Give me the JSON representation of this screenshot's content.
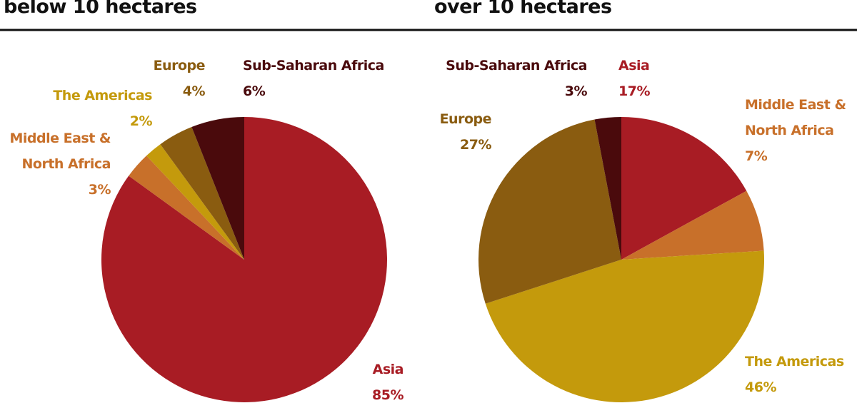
{
  "chart_data": [
    {
      "type": "pie",
      "title": "below 10 hectares",
      "categories": [
        "Asia",
        "Middle East & North Africa",
        "The Americas",
        "Europe",
        "Sub-Saharan Africa"
      ],
      "values": [
        85,
        3,
        2,
        4,
        6
      ],
      "value_labels": [
        "85%",
        "3%",
        "2%",
        "4%",
        "6%"
      ],
      "colors": [
        "#a81c24",
        "#c8702a",
        "#c49a0c",
        "#8a5c10",
        "#4a0a0c"
      ]
    },
    {
      "type": "pie",
      "title": "over 10 hectares",
      "categories": [
        "Asia",
        "Middle East & North Africa",
        "The Americas",
        "Europe",
        "Sub-Saharan Africa"
      ],
      "values": [
        17,
        7,
        46,
        27,
        3
      ],
      "value_labels": [
        "17%",
        "7%",
        "46%",
        "27%",
        "3%"
      ],
      "colors": [
        "#a81c24",
        "#c8702a",
        "#c49a0c",
        "#8a5c10",
        "#4a0a0c"
      ]
    }
  ]
}
